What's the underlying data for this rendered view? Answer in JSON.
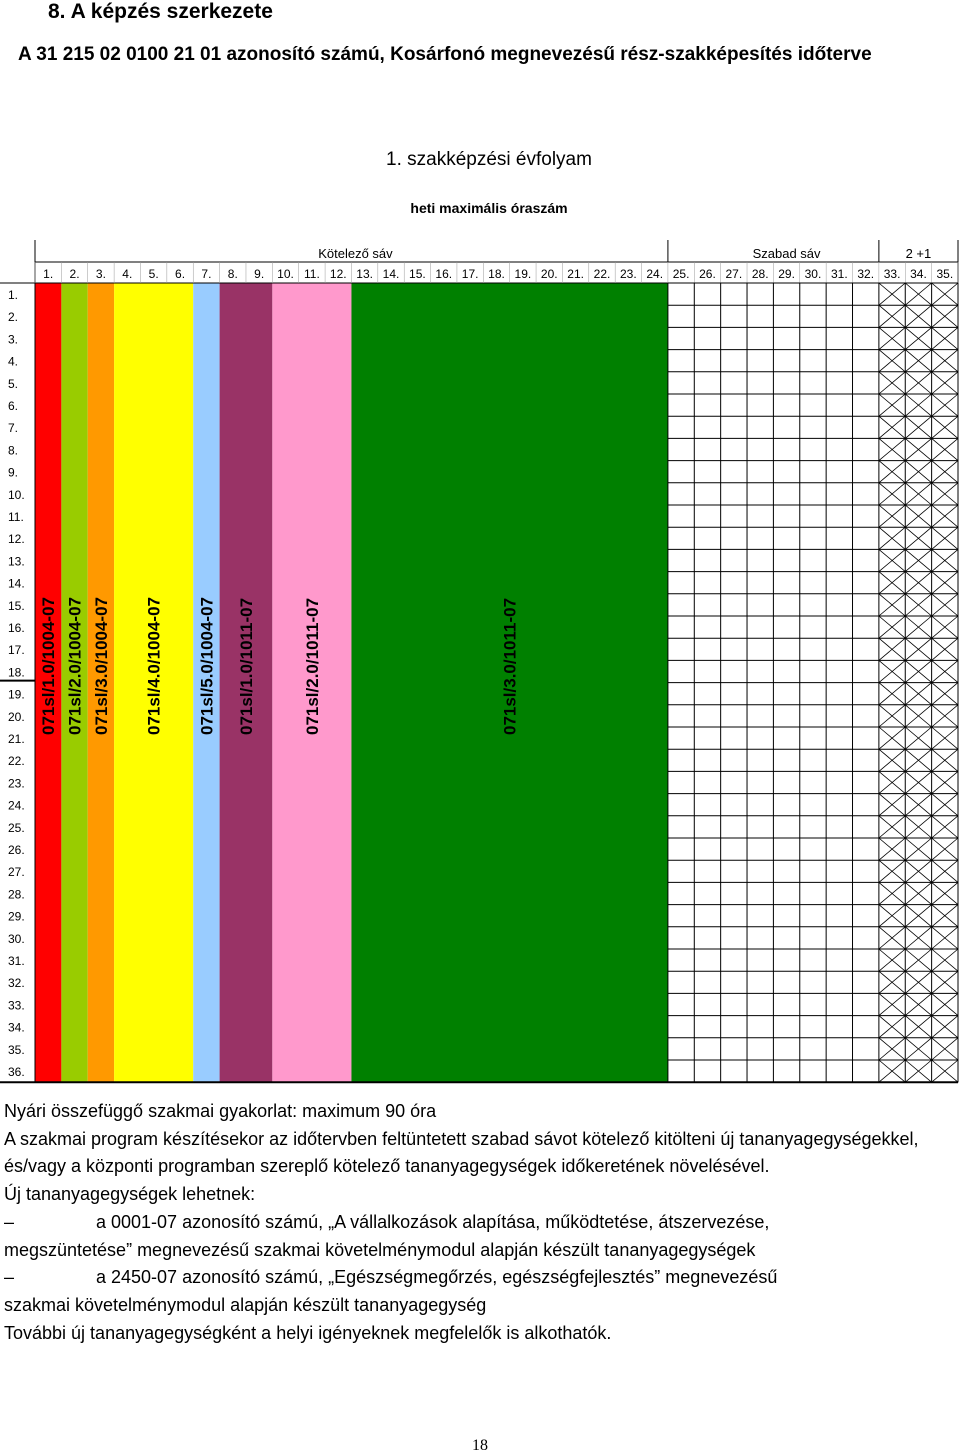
{
  "heading": "8.   A képzés szerkezete",
  "subtitle": "A 31 215 02 0100 21 01 azonosító számú, Kosárfonó megnevezésű rész-szakképesítés időterve",
  "year_title": "1. szakképzési évfolyam",
  "max_hours_label": "heti maximális óraszám",
  "bands": {
    "mandatory": "Kötelező sáv",
    "free": "Szabad sáv",
    "extra": "2 +1"
  },
  "hour_labels": [
    "1.",
    "2.",
    "3.",
    "4.",
    "5.",
    "6.",
    "7.",
    "8.",
    "9.",
    "10.",
    "11.",
    "12.",
    "13.",
    "14.",
    "15.",
    "16.",
    "17.",
    "18.",
    "19.",
    "20.",
    "21.",
    "22.",
    "23.",
    "24.",
    "25.",
    "26.",
    "27.",
    "28.",
    "29.",
    "30.",
    "31.",
    "32.",
    "33.",
    "34.",
    "35."
  ],
  "week_labels": [
    "1.",
    "2.",
    "3.",
    "4.",
    "5.",
    "6.",
    "7.",
    "8.",
    "9.",
    "10.",
    "11.",
    "12.",
    "13.",
    "14.",
    "15.",
    "16.",
    "17.",
    "18.",
    "19.",
    "20.",
    "21.",
    "22.",
    "23.",
    "24.",
    "25.",
    "26.",
    "27.",
    "28.",
    "29.",
    "30.",
    "31.",
    "32.",
    "33.",
    "34.",
    "35.",
    "36."
  ],
  "modules": [
    {
      "label": "071sl/1.0/1004-07",
      "color": "#ff0000",
      "start_hour": 1,
      "hours": 1
    },
    {
      "label": "071sl/2.0/1004-07",
      "color": "#99cc00",
      "start_hour": 2,
      "hours": 1
    },
    {
      "label": "071sl/3.0/1004-07",
      "color": "#ff9900",
      "start_hour": 3,
      "hours": 1
    },
    {
      "label": "071sl/4.0/1004-07",
      "color": "#ffff00",
      "start_hour": 4,
      "hours": 3
    },
    {
      "label": "071sl/5.0/1004-07",
      "color": "#99ccff",
      "start_hour": 7,
      "hours": 1
    },
    {
      "label": "071sl/1.0/1011-07",
      "color": "#993366",
      "start_hour": 8,
      "hours": 2
    },
    {
      "label": "071sl/2.0/1011-07",
      "color": "#ff99cc",
      "start_hour": 10,
      "hours": 3
    },
    {
      "label": "071sl/3.0/1011-07",
      "color": "#008000",
      "start_hour": 13,
      "hours": 12
    }
  ],
  "free_hours": [
    25,
    26,
    27,
    28,
    29,
    30,
    31,
    32
  ],
  "crossed_hours": [
    33,
    34,
    35
  ],
  "notes": {
    "summer": "Nyári összefüggő szakmai gyakorlat: maximum 90 óra",
    "program": "A szakmai program készítésekor az időtervben feltüntetett szabad sávot kötelező kitölteni új tananyagegységekkel, és/vagy a központi programban szereplő kötelező tananyagegységek időkeretének növelésével.",
    "new_units": "Új tananyagegységek lehetnek:",
    "item1_dash": "–",
    "item1_first": "a 0001-07 azonosító számú, „A vállalkozások alapítása, működtetése, átszervezése,",
    "item1_rest": "megszüntetése” megnevezésű szakmai követelménymodul alapján készült tananyagegységek",
    "item2_dash": "–",
    "item2_first": "a 2450-07 azonosító számú, „Egészségmegőrzés, egészségfejlesztés” megnevezésű",
    "item2_rest": "szakmai követelménymodul alapján készült tananyagegység",
    "local": "További új tananyagegységként a helyi igényeknek megfelelők is alkothatók."
  },
  "page_number": "18"
}
